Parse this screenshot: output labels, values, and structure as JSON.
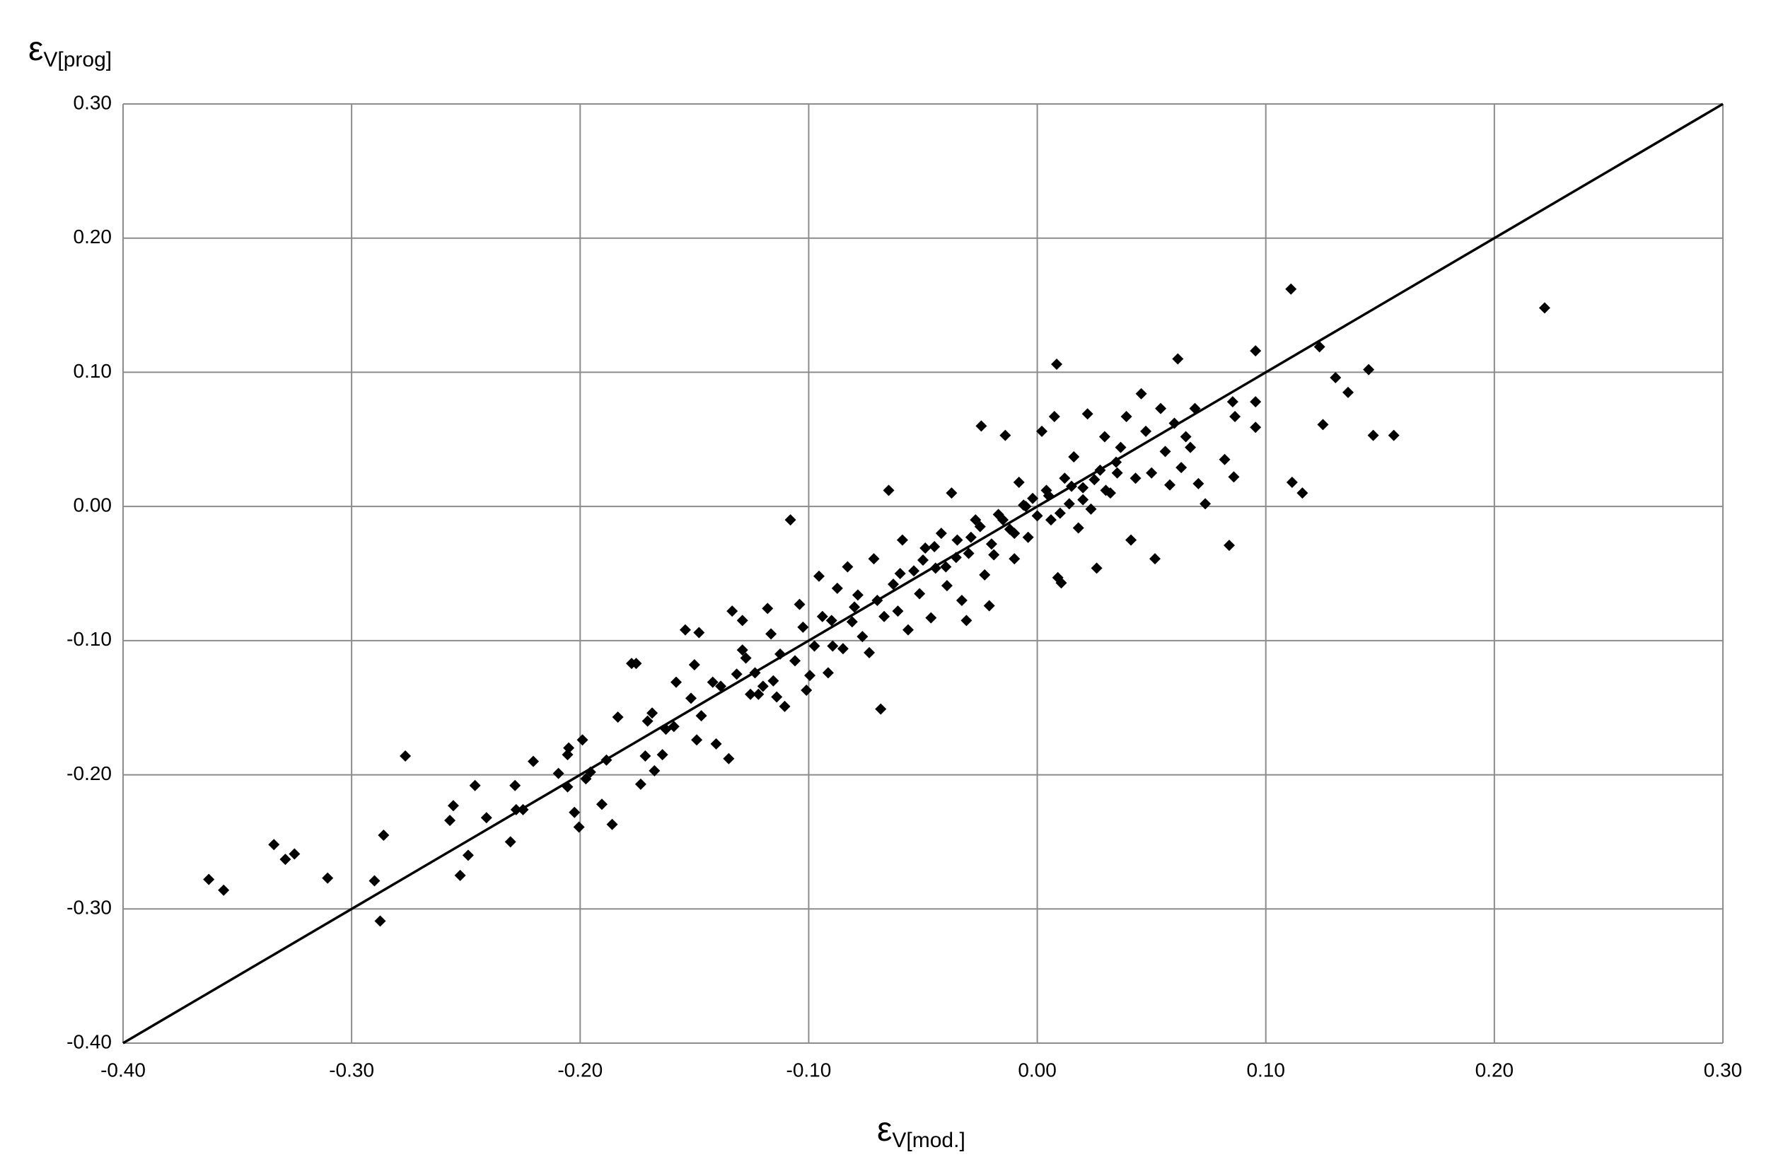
{
  "chart_data": {
    "type": "scatter",
    "xlabel": {
      "symbol": "ε",
      "subscript": "V[mod.]"
    },
    "ylabel": {
      "symbol": "ε",
      "subscript": "V[prog]"
    },
    "xlim": [
      -0.4,
      0.3
    ],
    "ylim": [
      -0.4,
      0.3
    ],
    "xticks": [
      {
        "value": -0.4,
        "label": "-0.40"
      },
      {
        "value": -0.3,
        "label": "-0.30"
      },
      {
        "value": -0.2,
        "label": "-0.20"
      },
      {
        "value": -0.1,
        "label": "-0.10"
      },
      {
        "value": 0,
        "label": "0.00"
      },
      {
        "value": 0.1,
        "label": "0.10"
      },
      {
        "value": 0.2,
        "label": "0.20"
      },
      {
        "value": 0.3,
        "label": "0.30"
      }
    ],
    "yticks": [
      {
        "value": -0.4,
        "label": "-0.40"
      },
      {
        "value": -0.3,
        "label": "-0.30"
      },
      {
        "value": -0.2,
        "label": "-0.20"
      },
      {
        "value": -0.1,
        "label": "-0.10"
      },
      {
        "value": 0,
        "label": "0.00"
      },
      {
        "value": 0.1,
        "label": "0.10"
      },
      {
        "value": 0.2,
        "label": "0.20"
      },
      {
        "value": 0.3,
        "label": "0.30"
      }
    ],
    "grid": true,
    "color": "#000000",
    "reference_line": {
      "x": [
        -0.4,
        0.3
      ],
      "y": [
        -0.4,
        0.3
      ]
    },
    "x": [
      -0.3625,
      -0.356,
      -0.334,
      -0.329,
      -0.325,
      -0.3105,
      -0.29,
      -0.2875,
      -0.286,
      -0.2765,
      -0.257,
      -0.2555,
      -0.2525,
      -0.249,
      -0.246,
      -0.241,
      -0.2305,
      -0.2285,
      -0.228,
      -0.225,
      -0.2205,
      -0.2095,
      -0.2055,
      -0.2055,
      -0.205,
      -0.2025,
      -0.2005,
      -0.199,
      -0.1975,
      -0.1955,
      -0.1905,
      -0.1885,
      -0.186,
      -0.1835,
      -0.1775,
      -0.1755,
      -0.1735,
      -0.1715,
      -0.1705,
      -0.1685,
      -0.1675,
      -0.164,
      -0.1625,
      -0.159,
      -0.158,
      -0.154,
      -0.1515,
      -0.15,
      -0.149,
      -0.148,
      -0.147,
      -0.142,
      -0.1405,
      -0.1385,
      -0.135,
      -0.1335,
      -0.1315,
      -0.129,
      -0.129,
      -0.1275,
      -0.1255,
      -0.1235,
      -0.122,
      -0.12,
      -0.118,
      -0.1165,
      -0.1155,
      -0.114,
      -0.1125,
      -0.1105,
      -0.108,
      -0.106,
      -0.104,
      -0.1025,
      -0.101,
      -0.0995,
      -0.0975,
      -0.0955,
      -0.094,
      -0.0915,
      -0.0895,
      -0.0875,
      -0.085,
      -0.083,
      -0.081,
      -0.0785,
      -0.0765,
      -0.0735,
      -0.0715,
      -0.0685,
      -0.067,
      -0.065,
      -0.063,
      -0.061,
      -0.059,
      -0.0565,
      -0.054,
      -0.0515,
      -0.049,
      -0.0465,
      -0.0445,
      -0.042,
      -0.0395,
      -0.0375,
      -0.0355,
      -0.033,
      -0.031,
      -0.029,
      -0.027,
      -0.0245,
      -0.023,
      -0.021,
      -0.019,
      -0.017,
      -0.014,
      -0.012,
      -0.01,
      -0.008,
      -0.006,
      -0.004,
      -0.002,
      0.0,
      0.002,
      0.004,
      0.006,
      0.0075,
      0.0085,
      0.009,
      0.0105,
      0.012,
      0.014,
      0.016,
      0.018,
      0.02,
      0.022,
      0.0235,
      0.026,
      0.0275,
      0.0295,
      0.032,
      0.0345,
      0.0365,
      0.039,
      0.041,
      0.043,
      0.0455,
      0.0475,
      0.05,
      0.0515,
      0.054,
      0.056,
      0.058,
      0.06,
      0.0615,
      0.063,
      0.065,
      0.067,
      0.069,
      0.0705,
      0.0735,
      0.082,
      0.084,
      0.0855,
      0.086,
      0.0865,
      0.0955,
      0.0955,
      0.0955,
      0.111,
      0.1115,
      0.116,
      0.1235,
      0.125,
      0.1305,
      0.136,
      0.145,
      0.147,
      0.156,
      0.222,
      -0.05,
      -0.045,
      -0.04,
      -0.035,
      -0.03,
      -0.025,
      -0.02,
      -0.015,
      -0.01,
      -0.005,
      0.005,
      0.01,
      0.015,
      0.02,
      0.025,
      0.03,
      0.035,
      -0.06,
      -0.07,
      -0.08,
      -0.09
    ],
    "values": [
      -0.278,
      -0.286,
      -0.252,
      -0.263,
      -0.259,
      -0.277,
      -0.279,
      -0.309,
      -0.245,
      -0.186,
      -0.234,
      -0.223,
      -0.275,
      -0.26,
      -0.208,
      -0.232,
      -0.25,
      -0.208,
      -0.226,
      -0.226,
      -0.19,
      -0.199,
      -0.209,
      -0.185,
      -0.18,
      -0.228,
      -0.239,
      -0.174,
      -0.203,
      -0.198,
      -0.222,
      -0.189,
      -0.237,
      -0.157,
      -0.117,
      -0.117,
      -0.207,
      -0.186,
      -0.16,
      -0.154,
      -0.197,
      -0.185,
      -0.166,
      -0.164,
      -0.131,
      -0.092,
      -0.143,
      -0.118,
      -0.174,
      -0.094,
      -0.156,
      -0.131,
      -0.177,
      -0.134,
      -0.188,
      -0.078,
      -0.125,
      -0.085,
      -0.107,
      -0.113,
      -0.14,
      -0.124,
      -0.14,
      -0.134,
      -0.076,
      -0.095,
      -0.13,
      -0.142,
      -0.11,
      -0.149,
      -0.01,
      -0.115,
      -0.073,
      -0.09,
      -0.137,
      -0.126,
      -0.104,
      -0.052,
      -0.082,
      -0.124,
      -0.104,
      -0.061,
      -0.106,
      -0.045,
      -0.086,
      -0.066,
      -0.097,
      -0.109,
      -0.039,
      -0.151,
      -0.082,
      0.012,
      -0.058,
      -0.078,
      -0.025,
      -0.092,
      -0.048,
      -0.065,
      -0.031,
      -0.083,
      -0.046,
      -0.02,
      -0.059,
      0.01,
      -0.038,
      -0.07,
      -0.085,
      -0.023,
      -0.01,
      0.06,
      -0.051,
      -0.074,
      -0.036,
      -0.006,
      0.053,
      -0.017,
      -0.039,
      0.018,
      0.001,
      -0.023,
      0.006,
      -0.007,
      0.056,
      0.012,
      -0.01,
      0.067,
      0.106,
      -0.053,
      -0.057,
      0.021,
      0.002,
      0.037,
      -0.016,
      0.014,
      0.069,
      -0.002,
      -0.046,
      0.027,
      0.052,
      0.01,
      0.033,
      0.044,
      0.067,
      -0.025,
      0.021,
      0.084,
      0.056,
      0.025,
      -0.039,
      0.073,
      0.041,
      0.016,
      0.062,
      0.11,
      0.029,
      0.052,
      0.044,
      0.073,
      0.017,
      0.002,
      0.035,
      -0.029,
      0.078,
      0.022,
      0.067,
      0.078,
      0.059,
      0.116,
      0.162,
      0.018,
      0.01,
      0.119,
      0.061,
      0.096,
      0.085,
      0.102,
      0.053,
      0.053,
      0.148,
      -0.04,
      -0.03,
      -0.045,
      -0.025,
      -0.035,
      -0.015,
      -0.028,
      -0.01,
      -0.02,
      0.0,
      0.008,
      -0.005,
      0.015,
      0.005,
      0.02,
      0.012,
      0.025,
      -0.05,
      -0.07,
      -0.075,
      -0.085
    ]
  }
}
